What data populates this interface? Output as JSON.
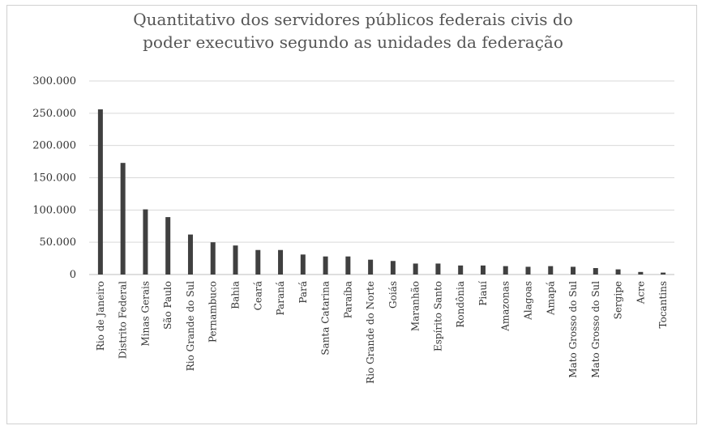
{
  "chart_data": {
    "type": "bar",
    "title_line1": "Quantitativo dos servidores públicos federais civis do",
    "title_line2": "poder executivo segundo as unidades da federação",
    "xlabel": "",
    "ylabel": "",
    "ylim": [
      0,
      300000
    ],
    "yticks": [
      "0",
      "50.000",
      "100.000",
      "150.000",
      "200.000",
      "250.000",
      "300.000"
    ],
    "grid": true,
    "legend": "none",
    "bar_color": "#404040",
    "categories": [
      "Rio de Janeiro",
      "Distrito Federal",
      "Minas Gerais",
      "São Paulo",
      "Rio Grande do Sul",
      "Pernambuco",
      "Bahia",
      "Ceará",
      "Paraná",
      "Pará",
      "Santa Catarina",
      "Paraíba",
      "Rio Grande do Norte",
      "Goiás",
      "Maranhão",
      "Espírito Santo",
      "Rondônia",
      "Piauí",
      "Amazonas",
      "Alagoas",
      "Amapá",
      "Mato Grosso do Sul",
      "Mato Grosso do Sul",
      "Sergipe",
      "Acre",
      "Tocantins"
    ],
    "values": [
      256000,
      173000,
      101000,
      89000,
      62000,
      50000,
      45000,
      38000,
      38000,
      31000,
      28000,
      28000,
      23000,
      21000,
      17000,
      17000,
      14000,
      14000,
      13000,
      12000,
      13000,
      12000,
      10000,
      8000,
      4000,
      3000
    ]
  }
}
